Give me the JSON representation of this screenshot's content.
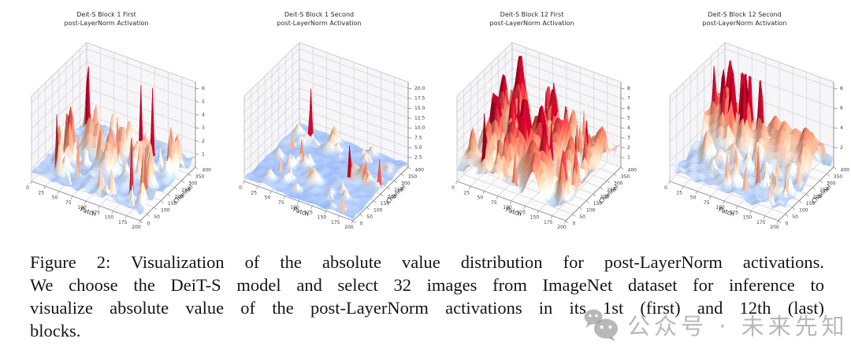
{
  "figure": {
    "caption_lines": [
      "Figure 2:  Visualization of the absolute value distribution for post-LayerNorm activations.",
      "We choose the DeiT-S model and select 32 images from ImageNet dataset for inference to",
      "visualize absolute value of the post-LayerNorm activations in its 1st (first) and 12th (last)",
      "blocks."
    ]
  },
  "watermark": {
    "icon": "wechat-icon",
    "text": "公众号 · 未来先知"
  },
  "chart_data": [
    {
      "type": "3d-surface",
      "title_line1": "Deit-S Block 1 First",
      "title_line2": "post-LayerNorm Activation",
      "xlabel": "Patch",
      "ylabel": "Channel",
      "x_ticks": [
        0,
        25,
        50,
        75,
        100,
        125,
        150,
        175,
        200
      ],
      "y_ticks": [
        0,
        50,
        100,
        150,
        200,
        250,
        300,
        350,
        400
      ],
      "z_ticks": [
        1,
        2,
        3,
        4,
        5,
        6
      ],
      "z_tick_labels": [
        "1",
        "2",
        "3",
        "4",
        "5",
        "6"
      ],
      "x_range": [
        0,
        200
      ],
      "y_range": [
        0,
        400
      ],
      "z_range": [
        0,
        6.5
      ],
      "colormap": "coolwarm",
      "color_vmax": 5.5,
      "seed": 11,
      "base": [
        0.2,
        1.1
      ],
      "features": [
        {
          "type": "blobs",
          "count": 38,
          "h": [
            0.7,
            2.6
          ],
          "r": [
            0.012,
            0.04
          ]
        },
        {
          "type": "blobs",
          "count": 15,
          "h": [
            2.8,
            6.1
          ],
          "r": [
            0.0035,
            0.009
          ]
        }
      ],
      "description": "Mostly low light-blue noise floor with sparse tall red activation spikes"
    },
    {
      "type": "3d-surface",
      "title_line1": "Deit-S Block 1 Second",
      "title_line2": "post-LayerNorm Activation",
      "xlabel": "Patch",
      "ylabel": "Channel",
      "x_ticks": [
        0,
        25,
        50,
        75,
        100,
        125,
        150,
        175,
        200
      ],
      "y_ticks": [
        0,
        50,
        100,
        150,
        200,
        250,
        300,
        350,
        400
      ],
      "z_ticks": [
        2.5,
        5.0,
        7.5,
        10.0,
        12.5,
        15.0,
        17.5,
        20.0
      ],
      "z_tick_labels": [
        "2.5",
        "5.0",
        "7.5",
        "10.0",
        "12.5",
        "15.0",
        "17.5",
        "20.0"
      ],
      "x_range": [
        0,
        200
      ],
      "y_range": [
        0,
        400
      ],
      "z_range": [
        0,
        21.5
      ],
      "colormap": "coolwarm",
      "color_vmax": 9,
      "seed": 22,
      "base": [
        0.2,
        1.6
      ],
      "features": [
        {
          "type": "blobs",
          "count": 45,
          "h": [
            0.7,
            3.0
          ],
          "r": [
            0.01,
            0.034
          ]
        },
        {
          "type": "blobs",
          "count": 9,
          "h": [
            3.5,
            7.5
          ],
          "r": [
            0.0035,
            0.008
          ]
        },
        {
          "type": "blobs",
          "count": 1,
          "h": [
            19.5,
            19.5
          ],
          "r": [
            0.004,
            0.004
          ],
          "u": [
            0.18,
            0.18
          ],
          "v": [
            0.85,
            0.85
          ]
        },
        {
          "type": "blobs",
          "count": 1,
          "h": [
            11,
            11
          ],
          "r": [
            0.004,
            0.004
          ],
          "u": [
            0.72,
            0.72
          ],
          "v": [
            0.5,
            0.5
          ]
        }
      ],
      "description": "Very flat light-blue floor with scattered small red dots and one very tall thin spike near 20"
    },
    {
      "type": "3d-surface",
      "title_line1": "Deit-S Block 12 First",
      "title_line2": "post-LayerNorm Activation",
      "xlabel": "Patch",
      "ylabel": "Channel",
      "x_ticks": [
        0,
        25,
        50,
        75,
        100,
        125,
        150,
        175,
        200
      ],
      "y_ticks": [
        0,
        50,
        100,
        150,
        200,
        250,
        300,
        350,
        400
      ],
      "z_ticks": [
        1,
        2,
        3,
        4,
        5,
        6,
        7,
        8
      ],
      "z_tick_labels": [
        "1",
        "2",
        "3",
        "4",
        "5",
        "6",
        "7",
        "8"
      ],
      "x_range": [
        0,
        200
      ],
      "y_range": [
        0,
        400
      ],
      "z_range": [
        0,
        8.6
      ],
      "colormap": "coolwarm",
      "color_vmax": 6.8,
      "seed": 33,
      "base": [
        0.4,
        2.4
      ],
      "features": [
        {
          "type": "blobs",
          "count": 70,
          "h": [
            1.2,
            4.3
          ],
          "r": [
            0.012,
            0.05
          ]
        },
        {
          "type": "blobs",
          "count": 22,
          "h": [
            3.0,
            6.6
          ],
          "r": [
            0.0035,
            0.01
          ]
        }
      ],
      "description": "Dense rough surface with many mixed pale-blue and salmon-red patches across the whole grid"
    },
    {
      "type": "3d-surface",
      "title_line1": "Deit-S Block 12 Second",
      "title_line2": "post-LayerNorm Activation",
      "xlabel": "Patch",
      "ylabel": "Channel",
      "x_ticks": [
        0,
        25,
        50,
        75,
        100,
        125,
        150,
        175,
        200
      ],
      "y_ticks": [
        0,
        50,
        100,
        150,
        200,
        250,
        300,
        350,
        400
      ],
      "z_ticks": [
        2,
        4,
        6,
        8
      ],
      "z_tick_labels": [
        "2",
        "4",
        "6",
        "8"
      ],
      "x_range": [
        0,
        200
      ],
      "y_range": [
        0,
        400
      ],
      "z_range": [
        0,
        8.8
      ],
      "colormap": "coolwarm",
      "color_vmax": 7.2,
      "seed": 44,
      "base": [
        0.3,
        1.7
      ],
      "features": [
        {
          "type": "blobs",
          "count": 26,
          "h": [
            0.7,
            2.2
          ],
          "r": [
            0.012,
            0.04
          ]
        },
        {
          "type": "band",
          "v": [
            0.6,
            0.86
          ],
          "h": [
            2.4,
            4.4
          ]
        },
        {
          "type": "blobs",
          "count": 13,
          "h": [
            4.0,
            8.3
          ],
          "r": [
            0.006,
            0.016
          ],
          "u": [
            0.06,
            0.6
          ],
          "v": [
            0.62,
            0.84
          ]
        },
        {
          "type": "blobs",
          "count": 10,
          "h": [
            2.6,
            5.2
          ],
          "r": [
            0.0035,
            0.009
          ],
          "u": [
            0.45,
            0.97
          ],
          "v": [
            0.04,
            0.48
          ]
        }
      ],
      "description": "Low blue noise floor with a strong red ridge band along channels ~250-350 containing dark-red spots"
    }
  ]
}
